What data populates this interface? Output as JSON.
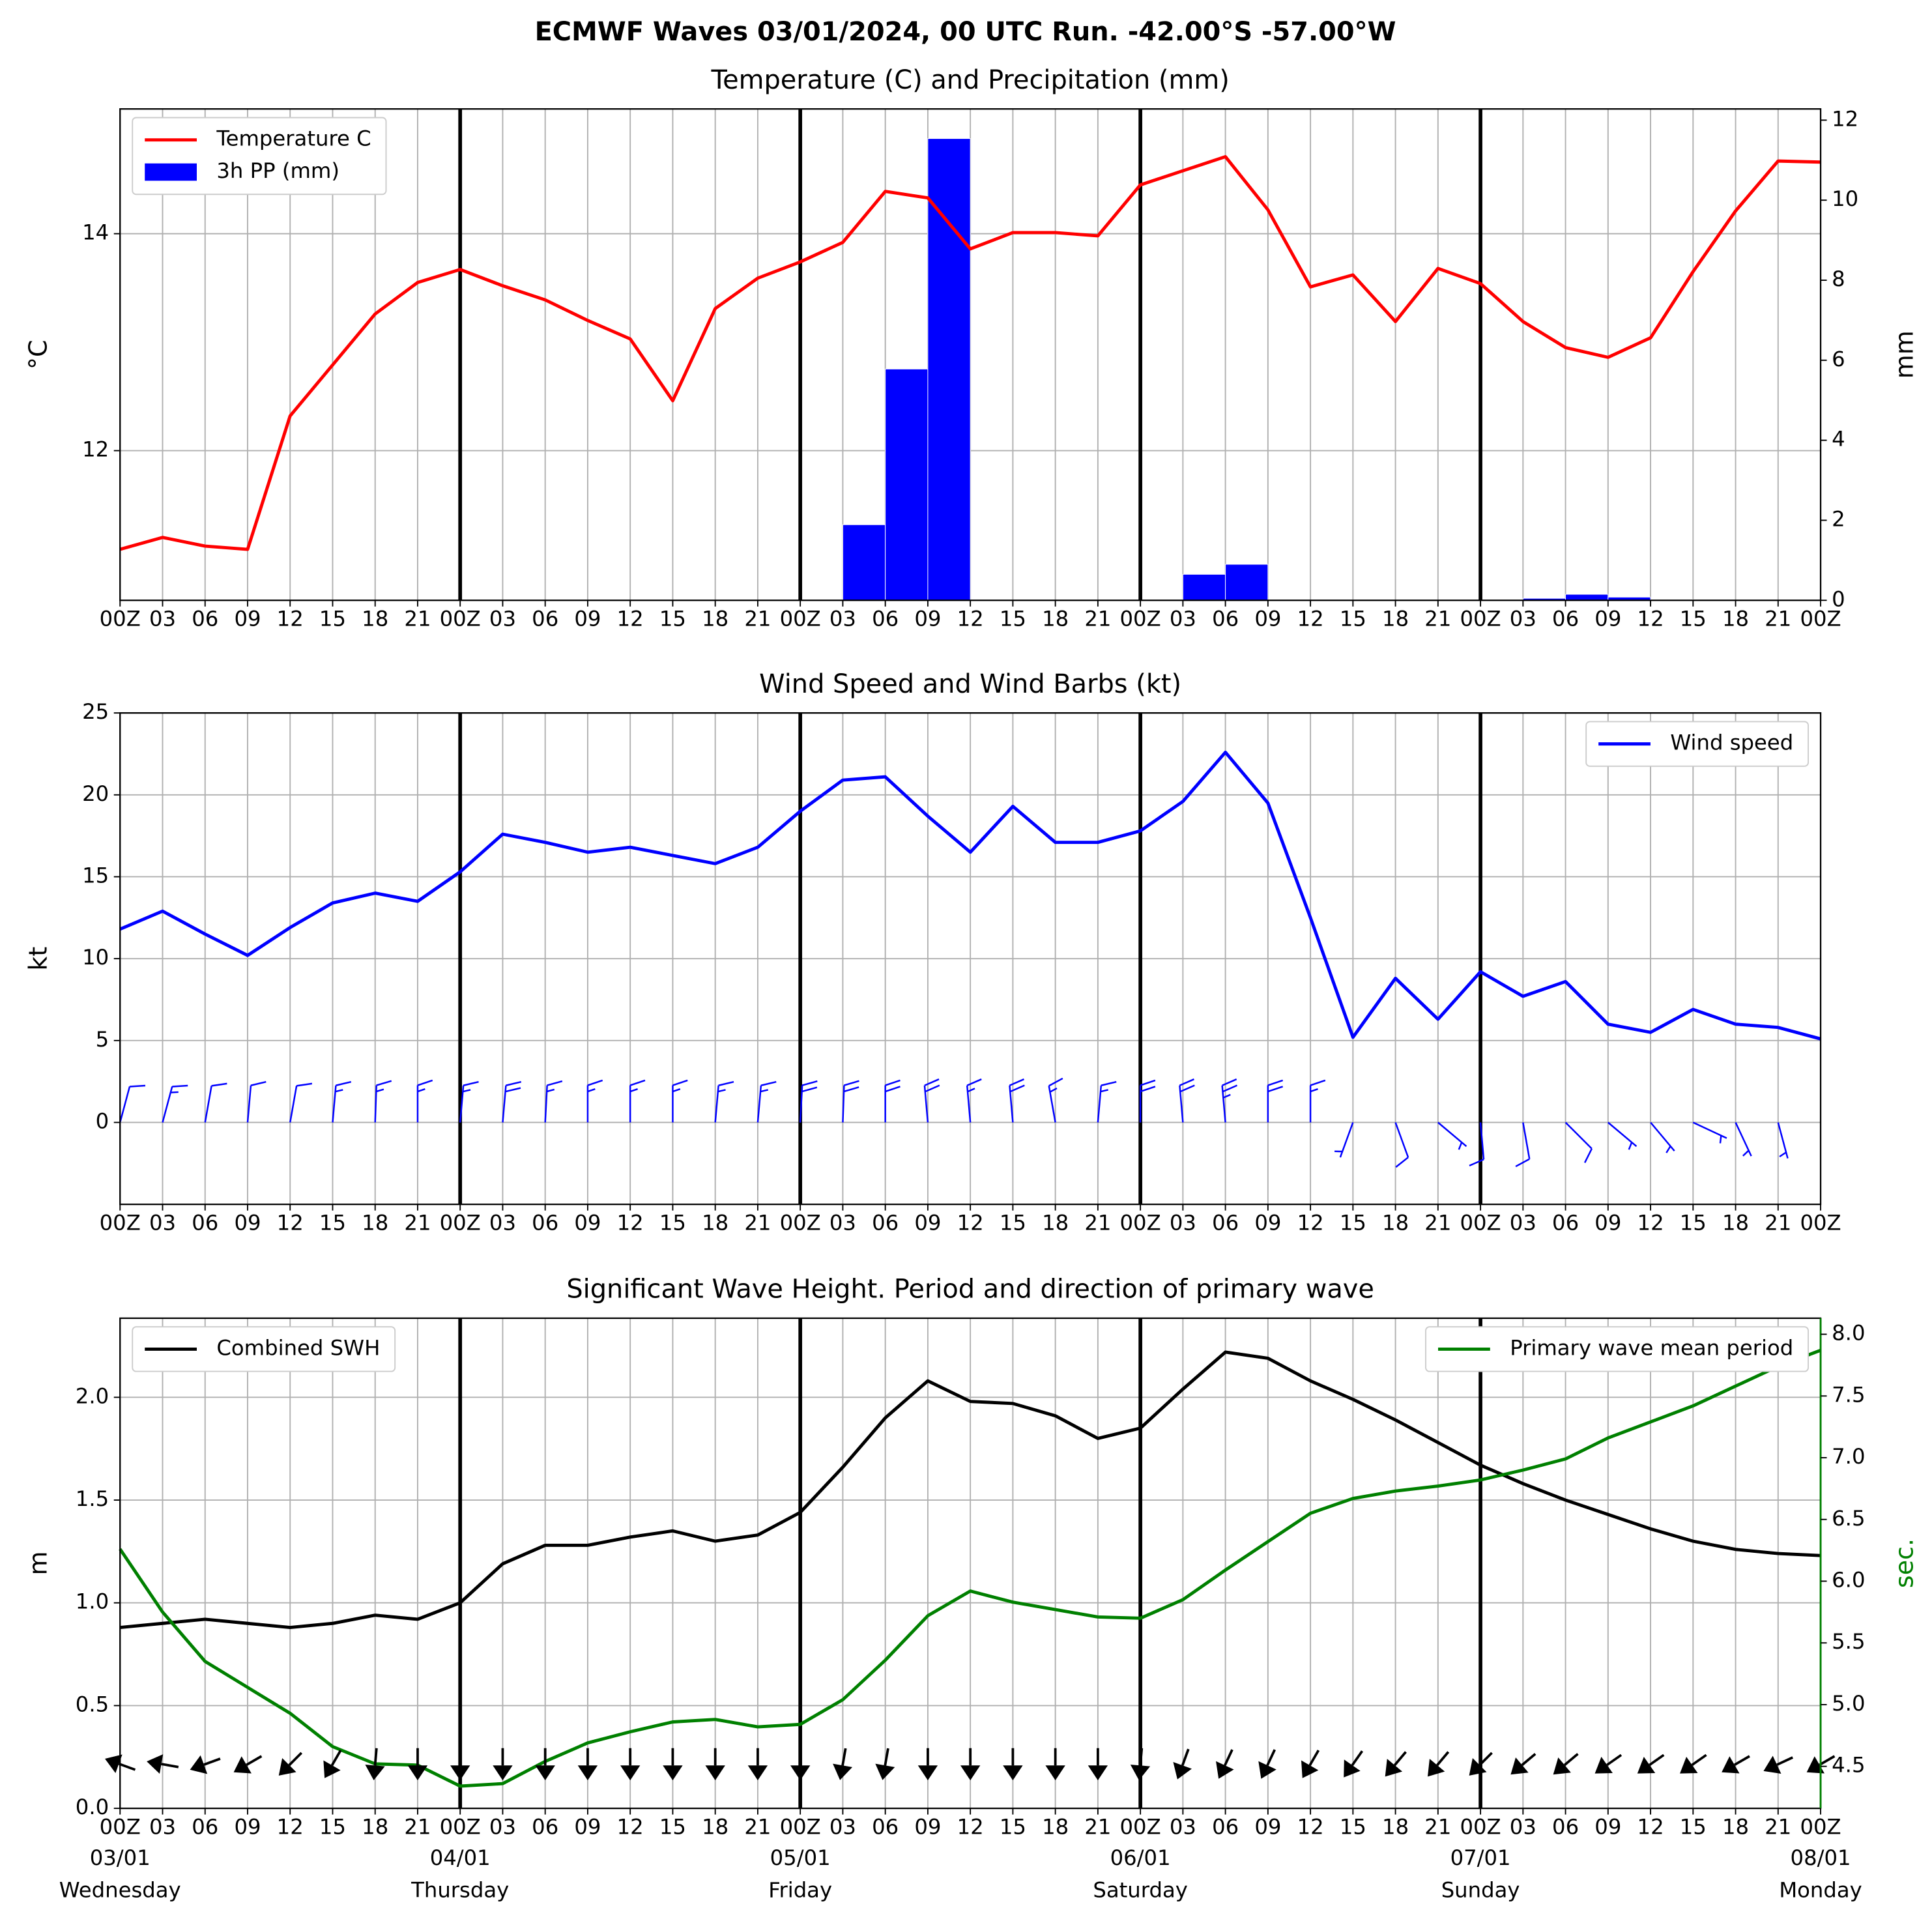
{
  "title": "ECMWF Waves 03/01/2024, 00 UTC Run. -42.00°S -57.00°W",
  "chart_data": [
    {
      "type": "combo",
      "title": "Temperature (C) and Precipitation (mm)",
      "y_label": "°C",
      "y2_label": "mm",
      "categories": [
        "00Z",
        "03",
        "06",
        "09",
        "12",
        "15",
        "18",
        "21",
        "00Z",
        "03",
        "06",
        "09",
        "12",
        "15",
        "18",
        "21",
        "00Z",
        "03",
        "06",
        "09",
        "12",
        "15",
        "18",
        "21",
        "00Z",
        "03",
        "06",
        "09",
        "12",
        "15",
        "18",
        "21",
        "00Z",
        "03",
        "06",
        "09",
        "12",
        "15",
        "18",
        "21",
        "00Z"
      ],
      "ylim": [
        10.62,
        15.15
      ],
      "yticks": [
        12,
        14
      ],
      "y2lim": [
        0,
        12.28
      ],
      "y2ticks": [
        0,
        2,
        4,
        6,
        8,
        10,
        12
      ],
      "grid": true,
      "series": [
        {
          "name": "Temperature C",
          "type": "line",
          "color": "#ff0000",
          "legend": "upper left",
          "values": [
            11.09,
            11.2,
            11.12,
            11.09,
            12.32,
            12.79,
            13.26,
            13.55,
            13.67,
            13.52,
            13.39,
            13.2,
            13.03,
            12.46,
            13.31,
            13.59,
            13.74,
            13.92,
            14.39,
            14.33,
            13.86,
            14.01,
            14.01,
            13.98,
            14.45,
            14.58,
            14.71,
            14.22,
            13.51,
            13.62,
            13.19,
            13.68,
            13.54,
            13.19,
            12.95,
            12.86,
            13.04,
            13.65,
            14.21,
            14.67,
            14.66
          ]
        },
        {
          "name": "3h PP (mm)",
          "type": "bar",
          "axis": "y2",
          "color": "#0000ff",
          "legend": "upper left",
          "values": [
            0,
            0,
            0,
            0,
            0,
            0,
            0,
            0,
            0,
            0,
            0,
            0,
            0,
            0,
            0,
            0,
            0,
            0,
            1.89,
            5.78,
            11.54,
            0,
            0,
            0,
            0,
            0,
            0.65,
            0.9,
            0,
            0,
            0,
            0,
            0,
            0,
            0.05,
            0.15,
            0.08,
            0.02,
            0,
            0,
            0
          ]
        }
      ]
    },
    {
      "type": "line",
      "title": "Wind Speed and Wind Barbs (kt)",
      "y_label": "kt",
      "categories": [
        "00Z",
        "03",
        "06",
        "09",
        "12",
        "15",
        "18",
        "21",
        "00Z",
        "03",
        "06",
        "09",
        "12",
        "15",
        "18",
        "21",
        "00Z",
        "03",
        "06",
        "09",
        "12",
        "15",
        "18",
        "21",
        "00Z",
        "03",
        "06",
        "09",
        "12",
        "15",
        "18",
        "21",
        "00Z",
        "03",
        "06",
        "09",
        "12",
        "15",
        "18",
        "21",
        "00Z"
      ],
      "ylim": [
        -5,
        25
      ],
      "yticks": [
        0,
        5,
        10,
        15,
        20,
        25
      ],
      "grid": true,
      "barb_color": "#0000ff",
      "series": [
        {
          "name": "Wind speed",
          "type": "line",
          "color": "#0000ff",
          "legend": "upper right",
          "values": [
            11.8,
            12.9,
            11.5,
            10.2,
            11.9,
            13.4,
            14.0,
            13.5,
            15.3,
            17.6,
            17.1,
            16.5,
            16.8,
            16.3,
            15.8,
            16.8,
            19.0,
            20.9,
            21.1,
            18.7,
            16.5,
            19.3,
            17.1,
            17.1,
            17.8,
            19.6,
            22.6,
            19.5,
            12.5,
            5.2,
            8.8,
            6.3,
            9.2,
            7.7,
            8.6,
            6.0,
            5.5,
            6.9,
            6.0,
            5.8,
            5.1
          ]
        }
      ],
      "wind_direction": [
        15,
        15,
        10,
        5,
        10,
        5,
        2,
        0,
        5,
        5,
        3,
        0,
        0,
        0,
        5,
        5,
        3,
        2,
        0,
        355,
        355,
        355,
        350,
        5,
        0,
        355,
        355,
        0,
        0,
        200,
        160,
        130,
        175,
        170,
        135,
        130,
        140,
        115,
        155,
        165,
        null
      ]
    },
    {
      "type": "line",
      "title": "Significant Wave Height. Period and direction of primary wave",
      "y_label": "m",
      "y2_label": "sec.",
      "y2_color": "#008000",
      "categories": [
        "00Z",
        "03",
        "06",
        "09",
        "12",
        "15",
        "18",
        "21",
        "00Z",
        "03",
        "06",
        "09",
        "12",
        "15",
        "18",
        "21",
        "00Z",
        "03",
        "06",
        "09",
        "12",
        "15",
        "18",
        "21",
        "00Z",
        "03",
        "06",
        "09",
        "12",
        "15",
        "18",
        "21",
        "00Z",
        "03",
        "06",
        "09",
        "12",
        "15",
        "18",
        "21",
        "00Z"
      ],
      "dates": [
        "03/01",
        null,
        null,
        null,
        null,
        null,
        null,
        null,
        "04/01",
        null,
        null,
        null,
        null,
        null,
        null,
        null,
        "05/01",
        null,
        null,
        null,
        null,
        null,
        null,
        null,
        "06/01",
        null,
        null,
        null,
        null,
        null,
        null,
        null,
        "07/01",
        null,
        null,
        null,
        null,
        null,
        null,
        null,
        "08/01"
      ],
      "weekdays": [
        "Wednesday",
        null,
        null,
        null,
        null,
        null,
        null,
        null,
        "Thursday",
        null,
        null,
        null,
        null,
        null,
        null,
        null,
        "Friday",
        null,
        null,
        null,
        null,
        null,
        null,
        null,
        "Saturday",
        null,
        null,
        null,
        null,
        null,
        null,
        null,
        "Sunday",
        null,
        null,
        null,
        null,
        null,
        null,
        null,
        "Monday"
      ],
      "ylim": [
        0,
        2.385
      ],
      "yticks": [
        {
          "value": 0,
          "label": "0.0"
        },
        {
          "value": 0.5,
          "label": "0.5"
        },
        {
          "value": 1,
          "label": "1.0"
        },
        {
          "value": 1.5,
          "label": "1.5"
        },
        {
          "value": 2,
          "label": "2.0"
        }
      ],
      "y2lim": [
        4.16,
        8.13
      ],
      "y2ticks": [
        4.5,
        {
          "value": 5,
          "label": "5.0"
        },
        5.5,
        {
          "value": 6,
          "label": "6.0"
        },
        6.5,
        {
          "value": 7,
          "label": "7.0"
        },
        7.5,
        {
          "value": 8,
          "label": "8.0"
        }
      ],
      "grid": true,
      "arrow_color": "#000000",
      "series": [
        {
          "name": "Combined SWH",
          "type": "line",
          "color": "#000000",
          "legend": "upper left",
          "values": [
            0.88,
            0.9,
            0.92,
            0.9,
            0.88,
            0.9,
            0.94,
            0.92,
            1.0,
            1.19,
            1.28,
            1.28,
            1.32,
            1.35,
            1.3,
            1.33,
            1.44,
            1.66,
            1.9,
            2.08,
            1.98,
            1.97,
            1.91,
            1.8,
            1.85,
            2.04,
            2.22,
            2.19,
            2.08,
            1.99,
            1.89,
            1.78,
            1.67,
            1.58,
            1.5,
            1.43,
            1.36,
            1.3,
            1.26,
            1.24,
            1.23
          ]
        },
        {
          "name": "Primary wave mean period",
          "type": "line",
          "axis": "y2",
          "color": "#008000",
          "legend": "upper right",
          "values": [
            6.26,
            5.75,
            5.35,
            5.14,
            4.93,
            4.66,
            4.52,
            4.51,
            4.34,
            4.36,
            4.54,
            4.69,
            4.78,
            4.86,
            4.88,
            4.82,
            4.84,
            5.04,
            5.36,
            5.72,
            5.92,
            5.83,
            5.77,
            5.71,
            5.7,
            5.85,
            6.09,
            6.32,
            6.55,
            6.67,
            6.73,
            6.77,
            6.82,
            6.9,
            6.99,
            7.16,
            7.29,
            7.42,
            7.58,
            7.74,
            7.87
          ]
        }
      ],
      "wave_direction": [
        110,
        100,
        70,
        60,
        45,
        30,
        5,
        0,
        0,
        0,
        0,
        0,
        0,
        0,
        0,
        0,
        0,
        10,
        10,
        0,
        0,
        0,
        0,
        0,
        5,
        20,
        25,
        25,
        30,
        35,
        40,
        40,
        45,
        50,
        50,
        55,
        55,
        55,
        60,
        65,
        60
      ]
    }
  ]
}
